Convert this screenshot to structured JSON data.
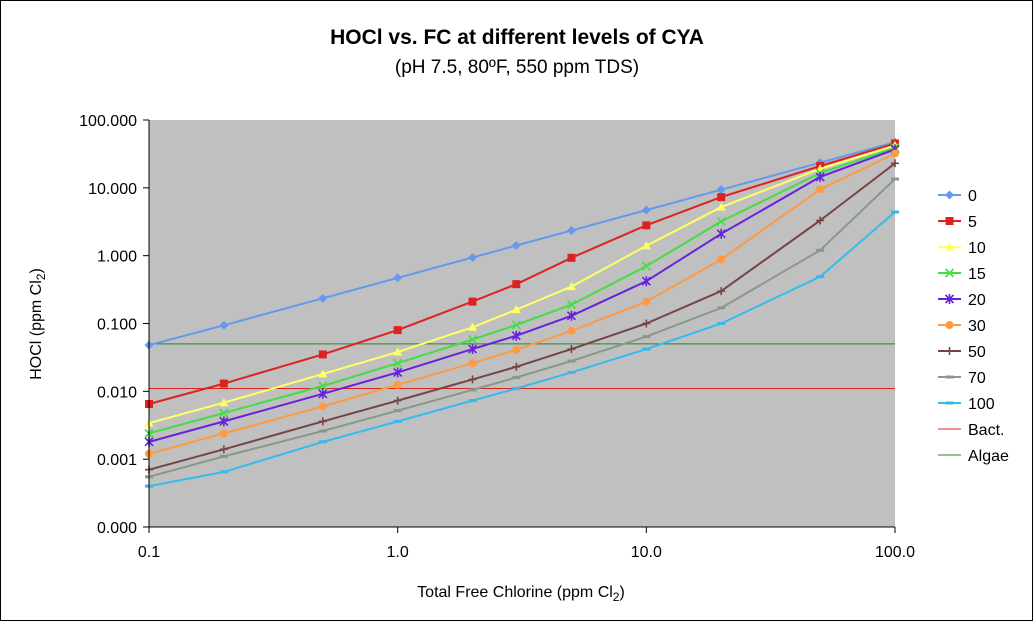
{
  "chart_data": {
    "type": "line",
    "title": "HOCl vs. FC at different levels of CYA",
    "subtitle": "(pH 7.5, 80ºF, 550 ppm TDS)",
    "xlabel": "Total Free Chlorine (ppm Cl",
    "xlabel_sub": "2",
    "xlabel_tail": ")",
    "ylabel": "HOCl (ppm Cl",
    "ylabel_sub": "2",
    "ylabel_tail": ")",
    "x_scale": "log",
    "y_scale": "log",
    "xlim": [
      0.1,
      100
    ],
    "ylim": [
      0.0001,
      100
    ],
    "x_ticks": [
      {
        "value": 0.1,
        "label": "0.1"
      },
      {
        "value": 1,
        "label": "1.0"
      },
      {
        "value": 10,
        "label": "10.0"
      },
      {
        "value": 100,
        "label": "100.0"
      }
    ],
    "y_ticks": [
      {
        "value": 0.0001,
        "label": "0.000"
      },
      {
        "value": 0.001,
        "label": "0.001"
      },
      {
        "value": 0.01,
        "label": "0.010"
      },
      {
        "value": 0.1,
        "label": "0.100"
      },
      {
        "value": 1,
        "label": "1.000"
      },
      {
        "value": 10,
        "label": "10.000"
      },
      {
        "value": 100,
        "label": "100.000"
      }
    ],
    "grid": false,
    "plot_background": "#c0c0c0",
    "legend_position": "right",
    "x": [
      0.1,
      0.2,
      0.5,
      1,
      2,
      3,
      5,
      10,
      20,
      50,
      100
    ],
    "series": [
      {
        "name": "0",
        "color": "#6699ee",
        "marker": "diamond",
        "values": [
          0.048,
          0.094,
          0.235,
          0.47,
          0.94,
          1.41,
          2.35,
          4.7,
          9.4,
          23.5,
          47
        ]
      },
      {
        "name": "5",
        "color": "#dd2222",
        "marker": "square",
        "values": [
          0.0065,
          0.013,
          0.035,
          0.08,
          0.21,
          0.38,
          0.93,
          2.8,
          7.3,
          21,
          45
        ]
      },
      {
        "name": "10",
        "color": "#ffff66",
        "marker": "triangle",
        "values": [
          0.0034,
          0.0068,
          0.018,
          0.038,
          0.088,
          0.16,
          0.35,
          1.4,
          5.2,
          19,
          42
        ]
      },
      {
        "name": "15",
        "color": "#44dd44",
        "marker": "x",
        "values": [
          0.0024,
          0.0048,
          0.012,
          0.026,
          0.058,
          0.095,
          0.19,
          0.7,
          3.2,
          16.5,
          39
        ]
      },
      {
        "name": "20",
        "color": "#6622dd",
        "marker": "star",
        "values": [
          0.0018,
          0.0036,
          0.0092,
          0.019,
          0.042,
          0.066,
          0.13,
          0.42,
          2.1,
          14.5,
          37
        ]
      },
      {
        "name": "30",
        "color": "#ff9944",
        "marker": "circle",
        "values": [
          0.0012,
          0.0024,
          0.006,
          0.0125,
          0.026,
          0.041,
          0.078,
          0.21,
          0.88,
          9.5,
          32
        ]
      },
      {
        "name": "50",
        "color": "#774444",
        "marker": "plus",
        "values": [
          0.0007,
          0.0014,
          0.0036,
          0.0073,
          0.015,
          0.023,
          0.042,
          0.1,
          0.3,
          3.3,
          23
        ]
      },
      {
        "name": "70",
        "color": "#889988",
        "marker": "dash",
        "values": [
          0.00055,
          0.0011,
          0.0026,
          0.0052,
          0.0105,
          0.016,
          0.028,
          0.064,
          0.17,
          1.2,
          13.5
        ]
      },
      {
        "name": "100",
        "color": "#33bbee",
        "marker": "dash",
        "values": [
          0.0004,
          0.00065,
          0.0018,
          0.0036,
          0.0073,
          0.011,
          0.019,
          0.042,
          0.1,
          0.49,
          4.4
        ]
      }
    ],
    "reference_lines": [
      {
        "name": "Bact.",
        "color": "#dd2222",
        "y": 0.011
      },
      {
        "name": "Algae",
        "color": "#228822",
        "y": 0.05
      }
    ]
  }
}
